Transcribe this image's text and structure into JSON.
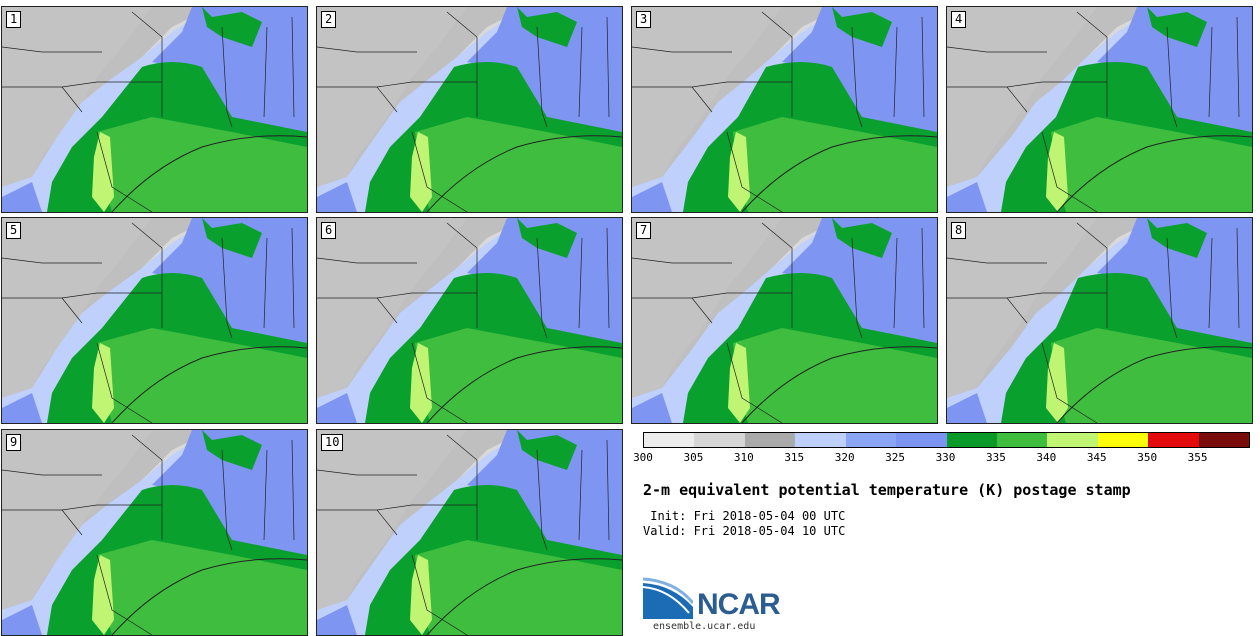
{
  "panels": [
    {
      "label": "1"
    },
    {
      "label": "2"
    },
    {
      "label": "3"
    },
    {
      "label": "4"
    },
    {
      "label": "5"
    },
    {
      "label": "6"
    },
    {
      "label": "7"
    },
    {
      "label": "8"
    },
    {
      "label": "9"
    },
    {
      "label": "10"
    }
  ],
  "colorbar": {
    "colors": [
      "#ececec",
      "#d6d6d6",
      "#aaaaaa",
      "#bdd0fb",
      "#8ba5f5",
      "#7b94f0",
      "#0a9a2a",
      "#3ebd3e",
      "#bff572",
      "#ffff0a",
      "#e30b0b",
      "#7a0b0b"
    ],
    "ticks": [
      "300",
      "305",
      "310",
      "315",
      "320",
      "325",
      "330",
      "335",
      "340",
      "345",
      "350",
      "355"
    ]
  },
  "title": "2-m equivalent potential temperature (K) postage stamp",
  "init": " Init: Fri 2018-05-04 00 UTC",
  "valid": "Valid: Fri 2018-05-04 10 UTC",
  "logo": {
    "text": "NCAR",
    "url": "ensemble.ucar.edu"
  }
}
